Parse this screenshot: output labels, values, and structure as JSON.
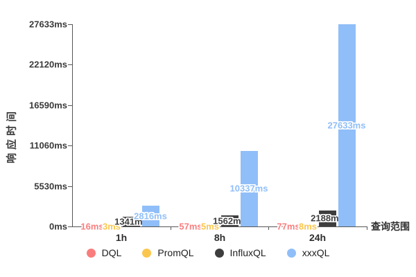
{
  "chart_data": {
    "type": "bar",
    "title": "",
    "xlabel": "查询范围",
    "ylabel": "响应时间",
    "categories": [
      "1h",
      "8h",
      "24h"
    ],
    "series": [
      {
        "name": "DQL",
        "color": "#f97d7d",
        "values": [
          16,
          57,
          77
        ],
        "labels": [
          "16ms",
          "57ms",
          "77ms"
        ]
      },
      {
        "name": "PromQL",
        "color": "#fbc64e",
        "values": [
          3,
          5,
          8
        ],
        "labels": [
          "3ms",
          "5ms",
          "8ms"
        ]
      },
      {
        "name": "InfluxQL",
        "color": "#3e3e3e",
        "values": [
          1341,
          1562,
          2188
        ],
        "labels": [
          "1341ms",
          "1562ms",
          "2188ms"
        ]
      },
      {
        "name": "xxxQL",
        "color": "#90bef8",
        "values": [
          2816,
          10337,
          27633
        ],
        "labels": [
          "2816ms",
          "10337ms",
          "27633ms"
        ]
      }
    ],
    "ylim": [
      0,
      27633
    ],
    "yticks": [
      {
        "value": 0,
        "label": "0ms"
      },
      {
        "value": 5530,
        "label": "5530ms"
      },
      {
        "value": 11060,
        "label": "11060ms"
      },
      {
        "value": 16590,
        "label": "16590ms"
      },
      {
        "value": 22120,
        "label": "22120ms"
      },
      {
        "value": 27633,
        "label": "27633ms"
      }
    ],
    "grid": false,
    "legend_position": "bottom",
    "label_style": "colored-text-white-outline",
    "axis_color": "#555555"
  }
}
